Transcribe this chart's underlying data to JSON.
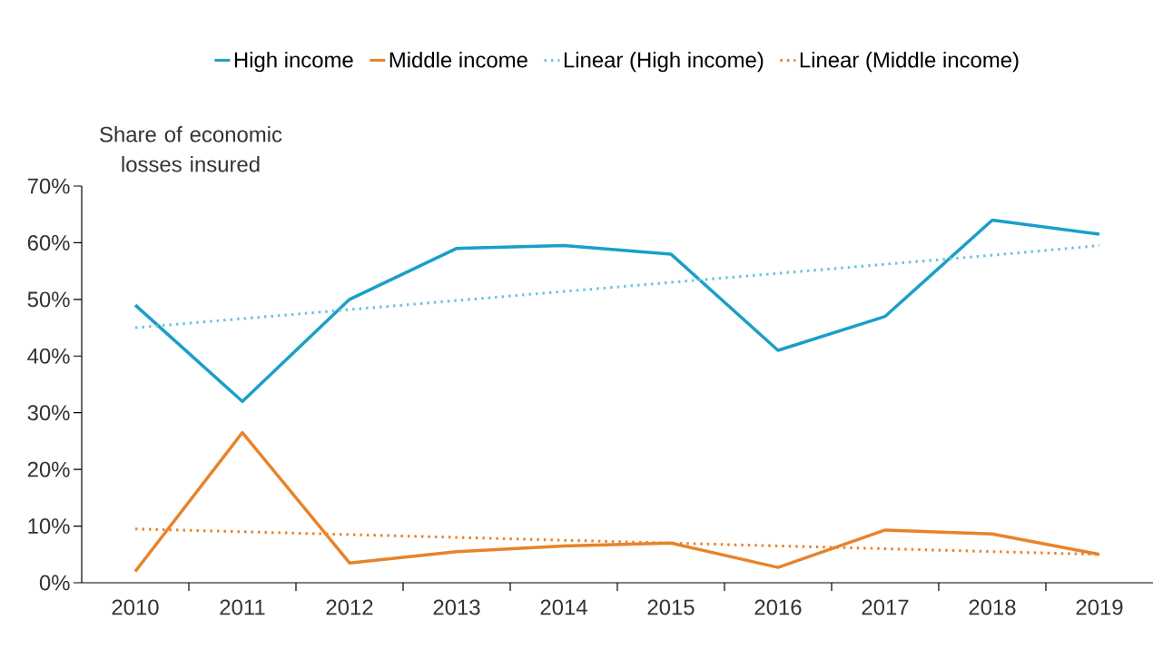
{
  "chart_data": {
    "type": "line",
    "ylabel": "Share of economic losses insured",
    "categories": [
      "2010",
      "2011",
      "2012",
      "2013",
      "2014",
      "2015",
      "2016",
      "2017",
      "2018",
      "2019"
    ],
    "series": [
      {
        "name": "High income",
        "color": "#1a9fc9",
        "values": [
          49,
          32,
          50,
          59,
          59.5,
          58,
          41,
          47,
          64,
          61.5
        ]
      },
      {
        "name": "Middle income",
        "color": "#e8832a",
        "values": [
          2,
          26.5,
          3.5,
          5.5,
          6.5,
          7,
          2.7,
          9.3,
          8.6,
          5
        ]
      },
      {
        "name": "Linear (High income)",
        "color": "#6cc3dd",
        "line_style": "dotted",
        "values": [
          45,
          46.6,
          48.2,
          49.8,
          51.4,
          53,
          54.6,
          56.2,
          57.8,
          59.5
        ]
      },
      {
        "name": "Linear (Middle income)",
        "color": "#e8832a",
        "line_style": "dotted",
        "values": [
          9.5,
          9,
          8.5,
          8,
          7.5,
          7,
          6.5,
          6,
          5.5,
          5
        ]
      }
    ],
    "ylim": [
      0,
      70
    ],
    "yticks": [
      {
        "value": 0,
        "label": "0%"
      },
      {
        "value": 10,
        "label": "10%"
      },
      {
        "value": 20,
        "label": "20%"
      },
      {
        "value": 30,
        "label": "30%"
      },
      {
        "value": 40,
        "label": "40%"
      },
      {
        "value": 50,
        "label": "50%"
      },
      {
        "value": 60,
        "label": "60%"
      },
      {
        "value": 70,
        "label": "70%"
      }
    ],
    "legend": "top",
    "marker": "none",
    "line_style": "solid"
  }
}
